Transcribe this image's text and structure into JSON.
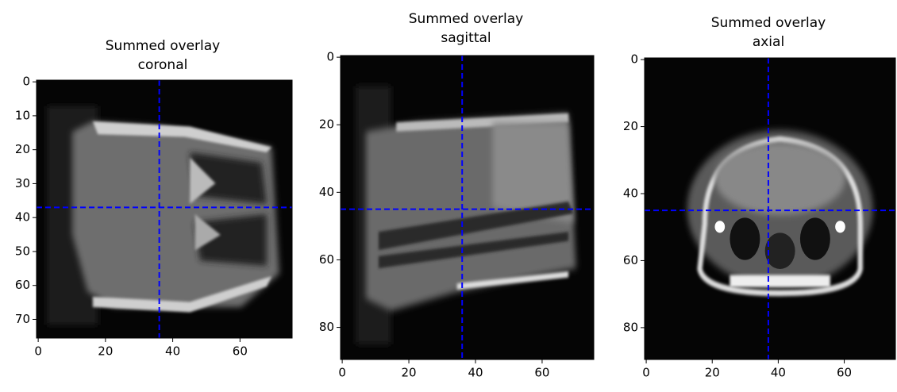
{
  "chart_data": [
    {
      "type": "image",
      "title": [
        "Summed overlay",
        "coronal"
      ],
      "xlim": [
        -0.5,
        75.5
      ],
      "ylim": [
        75.5,
        -0.5
      ],
      "xticks": [
        0,
        20,
        40,
        60
      ],
      "yticks": [
        0,
        10,
        20,
        30,
        40,
        50,
        60,
        70
      ],
      "crosshair": {
        "x": 36,
        "y": 37,
        "color": "#0000ff"
      }
    },
    {
      "type": "image",
      "title": [
        "Summed overlay",
        "sagittal"
      ],
      "xlim": [
        -0.5,
        75.5
      ],
      "ylim": [
        89.5,
        -0.5
      ],
      "xticks": [
        0,
        20,
        40,
        60
      ],
      "yticks": [
        0,
        20,
        40,
        60,
        80
      ],
      "crosshair": {
        "x": 36,
        "y": 45,
        "color": "#0000ff"
      }
    },
    {
      "type": "image",
      "title": [
        "Summed overlay",
        "axial"
      ],
      "xlim": [
        -0.5,
        75.5
      ],
      "ylim": [
        89.5,
        -0.5
      ],
      "xticks": [
        0,
        20,
        40,
        60
      ],
      "yticks": [
        0,
        20,
        40,
        60,
        80
      ],
      "crosshair": {
        "x": 37,
        "y": 45,
        "color": "#0000ff"
      }
    }
  ]
}
